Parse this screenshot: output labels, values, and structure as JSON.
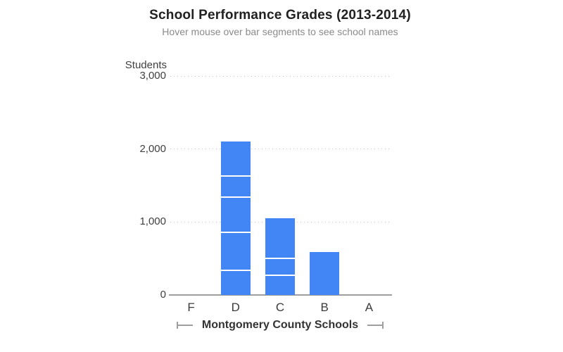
{
  "header": {
    "title": "School Performance Grades (2013-2014)",
    "subtitle": "Hover mouse over bar segments to see school names"
  },
  "chart_data": {
    "type": "bar",
    "stacked": true,
    "title": "School Performance Grades (2013-2014)",
    "subtitle": "Hover mouse over bar segments to see school names",
    "xlabel": "Montgomery County Schools",
    "ylabel": "Students",
    "categories": [
      "F",
      "D",
      "C",
      "B",
      "A"
    ],
    "bars": [
      {
        "category": "F",
        "segments": [],
        "total": 0
      },
      {
        "category": "D",
        "segments": [
          330,
          520,
          480,
          290,
          480
        ],
        "total": 2100
      },
      {
        "category": "C",
        "segments": [
          260,
          230,
          560
        ],
        "total": 1050
      },
      {
        "category": "B",
        "segments": [
          590
        ],
        "total": 590
      },
      {
        "category": "A",
        "segments": [],
        "total": 0
      }
    ],
    "segment_order": "bottom-to-top",
    "yticks": [
      {
        "value": 0,
        "label": "0"
      },
      {
        "value": 1000,
        "label": "1,000"
      },
      {
        "value": 2000,
        "label": "2,000"
      },
      {
        "value": 3000,
        "label": "3,000"
      }
    ],
    "ylim": [
      0,
      3000
    ],
    "grid": "horizontal-dotted",
    "legend": "none",
    "colors": {
      "bar": "#4285F4",
      "segment_divider": "#ffffff",
      "grid": "#c6c6c6",
      "axis_line": "#9e9e9e",
      "title": "#212121",
      "subtitle": "#8a8a8a",
      "tick_label": "#404040"
    }
  }
}
